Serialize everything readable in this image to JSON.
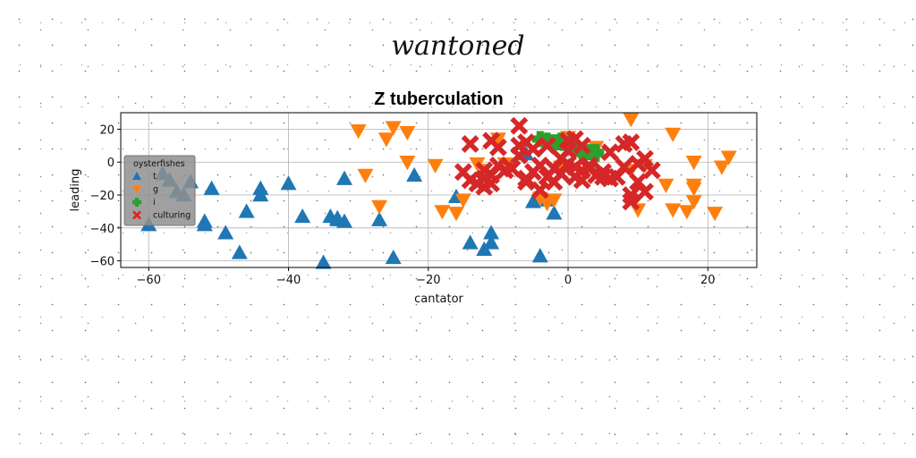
{
  "page": {
    "title": "wantoned"
  },
  "chart_data": {
    "type": "scatter",
    "title": "Z tuberculation",
    "xlabel": "cantator",
    "ylabel": "leading",
    "xlim": [
      -64,
      27
    ],
    "ylim": [
      -64,
      30
    ],
    "xticks": [
      -60,
      -40,
      -20,
      0,
      20
    ],
    "yticks": [
      -60,
      -40,
      -20,
      0,
      20
    ],
    "grid": true,
    "legend": {
      "title": "oysterfishes",
      "position": "center-left"
    },
    "series": [
      {
        "name": "t",
        "marker": "triangle-up",
        "color": "#1f77b4",
        "points": [
          [
            -60,
            -38
          ],
          [
            -58,
            -7
          ],
          [
            -57,
            -11
          ],
          [
            -56,
            -18
          ],
          [
            -55,
            -20
          ],
          [
            -54,
            -12
          ],
          [
            -52,
            -38
          ],
          [
            -52,
            -36
          ],
          [
            -51,
            -16
          ],
          [
            -49,
            -43
          ],
          [
            -47,
            -55
          ],
          [
            -46,
            -30
          ],
          [
            -44,
            -16
          ],
          [
            -44,
            -20
          ],
          [
            -40,
            -13
          ],
          [
            -38,
            -33
          ],
          [
            -35,
            -61
          ],
          [
            -34,
            -33
          ],
          [
            -33,
            -35
          ],
          [
            -33,
            -34
          ],
          [
            -32,
            -36
          ],
          [
            -32,
            -10
          ],
          [
            -27,
            -35
          ],
          [
            -25,
            -58
          ],
          [
            -22,
            -8
          ],
          [
            -16,
            -21
          ],
          [
            -14,
            -49
          ],
          [
            -12,
            -53
          ],
          [
            -11,
            -43
          ],
          [
            -11,
            -49
          ],
          [
            -5,
            -24
          ],
          [
            -4,
            -57
          ],
          [
            -3,
            -23
          ],
          [
            -2,
            -31
          ],
          [
            -6,
            5
          ]
        ]
      },
      {
        "name": "g",
        "marker": "triangle-down",
        "color": "#ff7f0e",
        "points": [
          [
            -30,
            19
          ],
          [
            -29,
            -8
          ],
          [
            -27,
            -27
          ],
          [
            -26,
            14
          ],
          [
            -25,
            21
          ],
          [
            -23,
            0
          ],
          [
            -23,
            18
          ],
          [
            -19,
            -2
          ],
          [
            -18,
            -30
          ],
          [
            -16,
            -31
          ],
          [
            -15,
            -23
          ],
          [
            -13,
            -1
          ],
          [
            -12,
            -5
          ],
          [
            -10,
            14
          ],
          [
            -9,
            -1
          ],
          [
            -4,
            -22
          ],
          [
            -3,
            -25
          ],
          [
            -2,
            -23
          ],
          [
            -1,
            -3
          ],
          [
            0,
            15
          ],
          [
            2,
            3
          ],
          [
            4,
            9
          ],
          [
            9,
            26
          ],
          [
            9,
            -5
          ],
          [
            10,
            -29
          ],
          [
            11,
            -2
          ],
          [
            14,
            -14
          ],
          [
            15,
            17
          ],
          [
            15,
            -29
          ],
          [
            17,
            -30
          ],
          [
            18,
            0
          ],
          [
            18,
            -14
          ],
          [
            18,
            -16
          ],
          [
            18,
            -24
          ],
          [
            21,
            -31
          ],
          [
            22,
            -3
          ],
          [
            23,
            3
          ]
        ]
      },
      {
        "name": "i",
        "marker": "plus",
        "color": "#2ca02c",
        "points": [
          [
            -4,
            14
          ],
          [
            -3,
            13
          ],
          [
            -2,
            12
          ],
          [
            -1,
            12
          ],
          [
            0,
            9
          ],
          [
            1,
            8
          ],
          [
            2,
            7
          ],
          [
            3,
            6
          ],
          [
            4,
            6
          ],
          [
            4,
            5
          ],
          [
            -1,
            13
          ],
          [
            0,
            11
          ]
        ]
      },
      {
        "name": "culturing",
        "marker": "x",
        "color": "#d62728",
        "points": [
          [
            -15,
            -6
          ],
          [
            -14,
            11
          ],
          [
            -14,
            -11
          ],
          [
            -13,
            -13
          ],
          [
            -12,
            -10
          ],
          [
            -12,
            -5
          ],
          [
            -12,
            -15
          ],
          [
            -11,
            -8
          ],
          [
            -11,
            -13
          ],
          [
            -11,
            13
          ],
          [
            -10,
            -2
          ],
          [
            -10,
            9
          ],
          [
            -9,
            -5
          ],
          [
            -8,
            -4
          ],
          [
            -7,
            22
          ],
          [
            -7,
            4
          ],
          [
            -7,
            10
          ],
          [
            -6,
            -10
          ],
          [
            -6,
            -12
          ],
          [
            -6,
            12
          ],
          [
            -5,
            -6
          ],
          [
            -5,
            8
          ],
          [
            -4,
            -2
          ],
          [
            -4,
            -17
          ],
          [
            -3,
            -9
          ],
          [
            -3,
            10
          ],
          [
            -2,
            -4
          ],
          [
            -2,
            -12
          ],
          [
            -1,
            -7
          ],
          [
            -1,
            2
          ],
          [
            0,
            -1
          ],
          [
            0,
            7
          ],
          [
            0,
            13
          ],
          [
            1,
            -3
          ],
          [
            1,
            -9
          ],
          [
            1,
            14
          ],
          [
            2,
            -5
          ],
          [
            2,
            -11
          ],
          [
            2,
            10
          ],
          [
            3,
            -4
          ],
          [
            3,
            -2
          ],
          [
            4,
            -8
          ],
          [
            5,
            -6
          ],
          [
            5,
            -9
          ],
          [
            6,
            -10
          ],
          [
            6,
            6
          ],
          [
            7,
            -9
          ],
          [
            8,
            -3
          ],
          [
            8,
            11
          ],
          [
            9,
            -20
          ],
          [
            9,
            -24
          ],
          [
            9,
            12
          ],
          [
            10,
            -12
          ],
          [
            10,
            -1
          ],
          [
            11,
            2
          ],
          [
            11,
            -18
          ],
          [
            12,
            -5
          ]
        ]
      }
    ]
  }
}
